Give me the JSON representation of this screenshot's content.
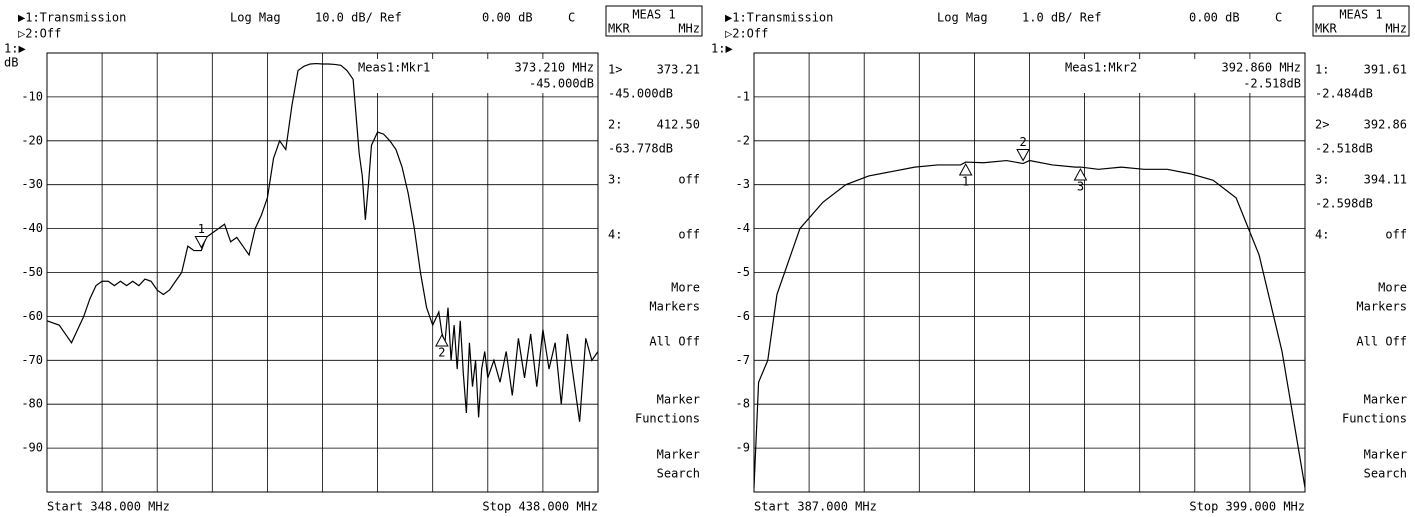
{
  "chart_data": [
    {
      "type": "line",
      "channel": "▶1:Transmission",
      "format": "Log Mag",
      "scale": "10.0 dB/ Ref",
      "reference": "0.00 dB",
      "coupling": "C",
      "channel2": "▷2:Off",
      "reference_marker": "1:▶",
      "y_unit": "dB",
      "active_marker": "Meas1:Mkr1",
      "active_marker_x": "373.210 MHz",
      "active_marker_value": "-45.000dB",
      "start": "Start 348.000 MHz",
      "stop": "Stop 438.000 MHz",
      "xlim": [
        348,
        438
      ],
      "ylim": [
        -100,
        0
      ],
      "yticks": [
        -10,
        -20,
        -30,
        -40,
        -50,
        -60,
        -70,
        -80,
        -90
      ],
      "grid": true,
      "color": "#000000",
      "x": [
        348,
        350,
        351,
        352,
        353,
        354,
        355,
        356,
        357,
        358,
        359,
        360,
        361,
        362,
        363,
        364,
        365,
        366,
        367,
        368,
        369,
        370,
        371,
        372,
        373,
        373.21,
        374,
        375,
        376,
        377,
        378,
        379,
        380,
        381,
        382,
        383,
        384,
        385,
        386,
        387,
        388,
        389,
        390,
        391,
        392,
        393,
        394,
        395,
        396,
        397,
        398,
        399,
        399.5,
        400,
        400.5,
        401,
        402,
        403,
        404,
        405,
        406,
        407,
        408,
        409,
        410,
        411,
        412,
        412.5,
        413,
        413.5,
        414,
        414.5,
        415,
        415.5,
        416,
        416.5,
        417,
        417.5,
        418,
        418.5,
        419,
        419.5,
        420,
        421,
        422,
        423,
        424,
        425,
        426,
        427,
        428,
        429,
        430,
        431,
        432,
        433,
        434,
        435,
        436,
        437,
        438
      ],
      "values": [
        -61,
        -62,
        -64,
        -66,
        -63,
        -60,
        -56,
        -53,
        -52,
        -52,
        -53,
        -52,
        -53,
        -52,
        -53,
        -51.5,
        -52,
        -54,
        -55,
        -54,
        -52,
        -50,
        -44,
        -45,
        -45,
        -45,
        -42,
        -41,
        -40,
        -39,
        -43,
        -42,
        -44,
        -46,
        -40,
        -37,
        -33,
        -24,
        -20,
        -22,
        -12,
        -4,
        -3,
        -2.5,
        -2.4,
        -2.5,
        -2.5,
        -2.6,
        -2.8,
        -4,
        -6,
        -23,
        -28,
        -38,
        -30,
        -21,
        -18,
        -18.5,
        -20,
        -22,
        -26,
        -32,
        -40,
        -50,
        -58,
        -62,
        -59,
        -63.8,
        -66,
        -58,
        -70,
        -62,
        -72,
        -61,
        -73,
        -82,
        -66,
        -76,
        -70,
        -83,
        -72,
        -68,
        -74,
        -70,
        -75,
        -68,
        -78,
        -65,
        -74,
        -64,
        -76,
        -63,
        -72,
        -66,
        -80,
        -64,
        -74,
        -84,
        -65,
        -70,
        -68
      ],
      "markers": {
        "x": [
          373.21,
          412.5
        ],
        "values": [
          -45.0,
          -63.778
        ],
        "labels": [
          "1",
          "2"
        ]
      },
      "softkeys": {
        "title": "MEAS 1",
        "units": [
          "MKR",
          "MHz"
        ],
        "readouts": [
          {
            "id": "1>",
            "freq": "373.21",
            "amp": "-45.000dB"
          },
          {
            "id": "2:",
            "freq": "412.50",
            "amp": "-63.778dB"
          },
          {
            "id": "3:",
            "freq": "off"
          },
          {
            "id": "4:",
            "freq": "off"
          }
        ],
        "keys": [
          [
            "More",
            "Markers"
          ],
          [
            "All Off"
          ],
          [
            "Marker",
            "Functions"
          ],
          [
            "Marker",
            "Search"
          ]
        ]
      }
    },
    {
      "type": "line",
      "channel": "▶1:Transmission",
      "format": "Log Mag",
      "scale": "1.0 dB/ Ref",
      "reference": "0.00 dB",
      "coupling": "C",
      "channel2": "▷2:Off",
      "reference_marker": "1:▶",
      "active_marker": "Meas1:Mkr2",
      "active_marker_x": "392.860 MHz",
      "active_marker_value": "-2.518dB",
      "start": "Start 387.000 MHz",
      "stop": "Stop 399.000 MHz",
      "xlim": [
        387,
        399
      ],
      "ylim": [
        -10,
        0
      ],
      "yticks": [
        -1,
        -2,
        -3,
        -4,
        -5,
        -6,
        -7,
        -8,
        -9
      ],
      "grid": true,
      "color": "#000000",
      "x": [
        387,
        387.1,
        387.3,
        387.5,
        388,
        388.5,
        389,
        389.5,
        390,
        390.5,
        391,
        391.5,
        391.61,
        392,
        392.5,
        392.86,
        393,
        393.5,
        394,
        394.11,
        394.5,
        395,
        395.5,
        396,
        396.5,
        397,
        397.5,
        398,
        398.5,
        399
      ],
      "values": [
        -9.9,
        -7.5,
        -7.0,
        -5.5,
        -4.0,
        -3.4,
        -3.0,
        -2.8,
        -2.7,
        -2.6,
        -2.55,
        -2.55,
        -2.484,
        -2.5,
        -2.45,
        -2.518,
        -2.45,
        -2.55,
        -2.6,
        -2.598,
        -2.65,
        -2.6,
        -2.65,
        -2.65,
        -2.75,
        -2.9,
        -3.3,
        -4.6,
        -6.8,
        -9.9
      ],
      "markers": {
        "x": [
          391.61,
          392.86,
          394.11
        ],
        "values": [
          -2.484,
          -2.518,
          -2.598
        ],
        "labels": [
          "1",
          "2",
          "3"
        ]
      },
      "softkeys": {
        "title": "MEAS 1",
        "units": [
          "MKR",
          "MHz"
        ],
        "readouts": [
          {
            "id": "1:",
            "freq": "391.61",
            "amp": "-2.484dB"
          },
          {
            "id": "2>",
            "freq": "392.86",
            "amp": "-2.518dB"
          },
          {
            "id": "3:",
            "freq": "394.11",
            "amp": "-2.598dB"
          },
          {
            "id": "4:",
            "freq": "off"
          }
        ],
        "keys": [
          [
            "More",
            "Markers"
          ],
          [
            "All Off"
          ],
          [
            "Marker",
            "Functions"
          ],
          [
            "Marker",
            "Search"
          ]
        ]
      }
    }
  ]
}
